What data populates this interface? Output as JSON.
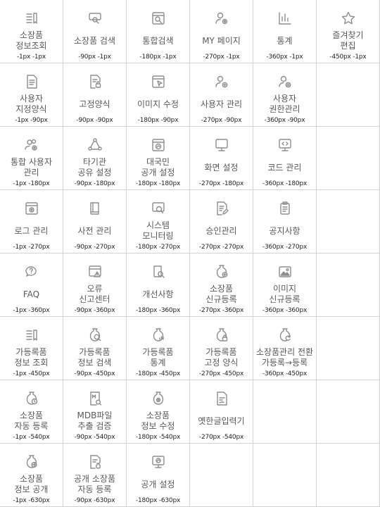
{
  "sprite_cells": [
    {
      "label": "소장품\n정보조회",
      "offset": "-1px -1px",
      "icon": "list-book-icon"
    },
    {
      "label": "소장품 검색",
      "offset": "-90px -1px",
      "icon": "search-screen-icon"
    },
    {
      "label": "통합검색",
      "offset": "-180px -1px",
      "icon": "window-search-icon"
    },
    {
      "label": "MY 페이지",
      "offset": "-270px -1px",
      "icon": "user-gear-icon"
    },
    {
      "label": "통계",
      "offset": "-360px -1px",
      "icon": "bar-chart-icon"
    },
    {
      "label": "즐겨찾기\n편집",
      "offset": "-450px -1px",
      "icon": "star-icon"
    },
    {
      "label": "사용자\n지정양식",
      "offset": "-1px -90px",
      "icon": "document-icon"
    },
    {
      "label": "고정양식",
      "offset": "-90px -90px",
      "icon": "document-lock-icon"
    },
    {
      "label": "이미지 수정",
      "offset": "-180px -90px",
      "icon": "window-cursor-icon"
    },
    {
      "label": "사용자 관리",
      "offset": "-270px -90px",
      "icon": "user-add-icon"
    },
    {
      "label": "사용자\n권한관리",
      "offset": "-360px -90px",
      "icon": "user-list-icon"
    },
    {
      "label": "",
      "offset": "",
      "icon": ""
    },
    {
      "label": "통합 사용자\n관리",
      "offset": "-1px -180px",
      "icon": "users-gear-icon"
    },
    {
      "label": "타기관\n공유 설정",
      "offset": "-90px -180px",
      "icon": "share-network-icon"
    },
    {
      "label": "대국민\n공개 설정",
      "offset": "-180px -180px",
      "icon": "window-public-icon"
    },
    {
      "label": "화면 설정",
      "offset": "-270px -180px",
      "icon": "monitor-icon"
    },
    {
      "label": "코드 관리",
      "offset": "-360px -180px",
      "icon": "code-monitor-icon"
    },
    {
      "label": "",
      "offset": "",
      "icon": ""
    },
    {
      "label": "로그 관리",
      "offset": "-1px -270px",
      "icon": "window-gear-icon"
    },
    {
      "label": "사전 관리",
      "offset": "-90px -270px",
      "icon": "book-icon"
    },
    {
      "label": "시스템\n모니터링",
      "offset": "-180px -270px",
      "icon": "screen-magnifier-icon"
    },
    {
      "label": "승인관리",
      "offset": "-270px -270px",
      "icon": "document-edit-icon"
    },
    {
      "label": "공지사항",
      "offset": "-360px -270px",
      "icon": "clipboard-icon"
    },
    {
      "label": "",
      "offset": "",
      "icon": ""
    },
    {
      "label": "FAQ",
      "offset": "-1px -360px",
      "icon": "faq-chat-icon"
    },
    {
      "label": "오류\n신고센터",
      "offset": "-90px -360px",
      "icon": "window-warning-icon"
    },
    {
      "label": "개선사항",
      "offset": "-180px -360px",
      "icon": "book-search-icon"
    },
    {
      "label": "소장품\n신규등록",
      "offset": "-270px -360px",
      "icon": "vase-add-icon"
    },
    {
      "label": "이미지\n신규등록",
      "offset": "-360px -360px",
      "icon": "image-icon"
    },
    {
      "label": "",
      "offset": "",
      "icon": ""
    },
    {
      "label": "가등록품\n정보 조회",
      "offset": "-1px -450px",
      "icon": "list-book-icon"
    },
    {
      "label": "가등록품\n정보 검색",
      "offset": "-90px -450px",
      "icon": "vase-search-icon"
    },
    {
      "label": "가등록품\n통계",
      "offset": "-180px -450px",
      "icon": "vase-chart-icon"
    },
    {
      "label": "가등록품\n고정 양식",
      "offset": "-270px -450px",
      "icon": "vase-lock-icon"
    },
    {
      "label": "소장품관리 전환\n가등록→등록",
      "offset": "-360px -450px",
      "icon": "vase-refresh-icon"
    },
    {
      "label": "",
      "offset": "",
      "icon": ""
    },
    {
      "label": "소장품\n자동 등록",
      "offset": "-1px -540px",
      "icon": "vase-clock-icon"
    },
    {
      "label": "MDB파일\n추출 검증",
      "offset": "-90px -540px",
      "icon": "mdb-file-icon"
    },
    {
      "label": "소장품\n정보 수정",
      "offset": "-180px -540px",
      "icon": "vase-gear-icon"
    },
    {
      "label": "옛한글입력기",
      "offset": "-270px -540px",
      "icon": "document-pen-icon"
    },
    {
      "label": "",
      "offset": "",
      "icon": ""
    },
    {
      "label": "",
      "offset": "",
      "icon": ""
    },
    {
      "label": "소장품\n정보 공개",
      "offset": "-1px -630px",
      "icon": "vase-globe-icon"
    },
    {
      "label": "공개 소장품\n자동 등록",
      "offset": "-90px -630px",
      "icon": "document-vase-icon"
    },
    {
      "label": "공개 설정",
      "offset": "-180px -630px",
      "icon": "monitor-globe-icon"
    },
    {
      "label": "",
      "offset": "",
      "icon": ""
    },
    {
      "label": "",
      "offset": "",
      "icon": ""
    },
    {
      "label": "",
      "offset": "",
      "icon": ""
    }
  ]
}
